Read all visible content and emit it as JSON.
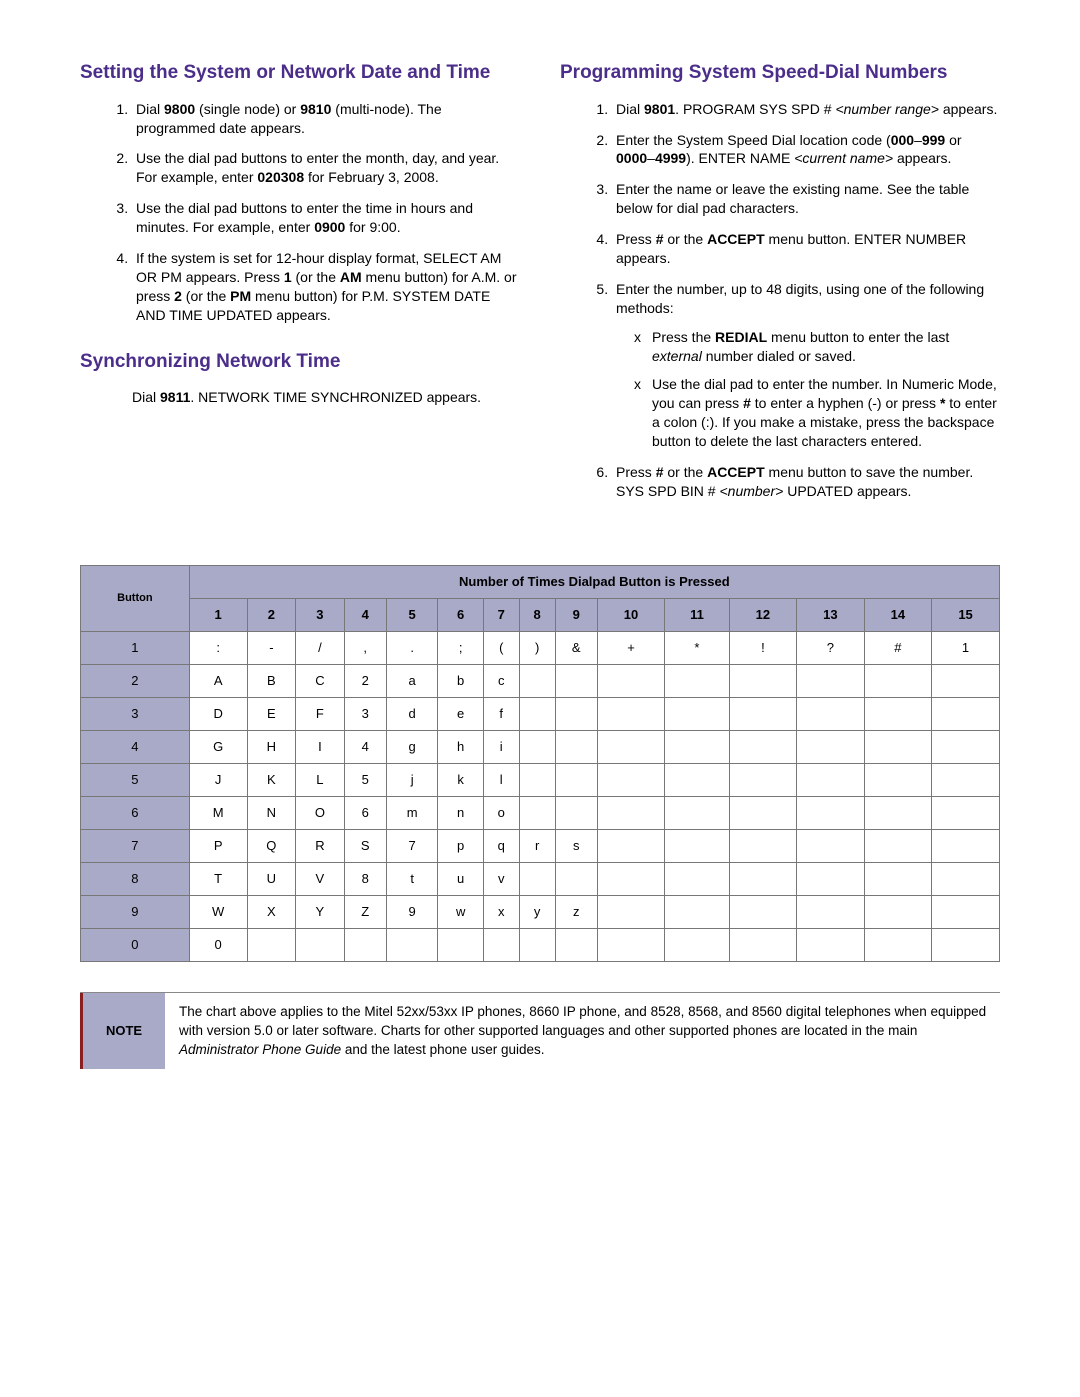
{
  "colors": {
    "heading": "#4b2d8a",
    "table_header_bg": "#a9a9c8",
    "table_border": "#777777",
    "note_accent": "#8a1f1f",
    "text": "#000000",
    "background": "#ffffff"
  },
  "left": {
    "h1": "Setting the System or Network Date and Time",
    "steps": {
      "s1a": "Dial ",
      "s1b": "9800",
      "s1c": " (single node) or ",
      "s1d": "9810",
      "s1e": " (multi-node). The programmed date appears.",
      "s2a": "Use the dial pad buttons to enter the month, day, and year. For example, enter ",
      "s2b": "020308",
      "s2c": " for February 3, 2008.",
      "s3a": "Use the dial pad buttons to enter the time in hours and minutes. For example, enter ",
      "s3b": "0900",
      "s3c": " for 9:00.",
      "s4a": "If the system is set for 12-hour display format, SELECT AM OR PM appears. Press ",
      "s4b": "1",
      "s4c": " (or the ",
      "s4d": "AM",
      "s4e": " menu button) for A.M. or press ",
      "s4f": "2",
      "s4g": " (or the ",
      "s4h": "PM",
      "s4i": " menu button) for P.M. SYSTEM DATE AND TIME UPDATED appears."
    },
    "h2": "Synchronizing Network Time",
    "sync_a": "Dial ",
    "sync_b": "9811",
    "sync_c": ". NETWORK TIME SYNCHRONIZED appears."
  },
  "right": {
    "h1": "Programming System Speed-Dial Numbers",
    "steps": {
      "s1a": "Dial ",
      "s1b": "9801",
      "s1c": ". PROGRAM SYS SPD # ",
      "s1d": "<number range>",
      "s1e": " appears.",
      "s2a": "Enter the System Speed Dial location code (",
      "s2b": "000",
      "s2c": "–",
      "s2d": "999",
      "s2e": " or ",
      "s2f": "0000",
      "s2g": "–",
      "s2h": "4999",
      "s2i": "). ENTER NAME ",
      "s2j": "<current name>",
      "s2k": " appears.",
      "s3": "Enter the name or leave the existing name. See the table below for dial pad characters.",
      "s4a": "Press ",
      "s4b": "#",
      "s4c": " or the ",
      "s4d": "ACCEPT",
      "s4e": " menu button. ENTER NUMBER appears.",
      "s5": "Enter the number, up to 48 digits, using one of the following methods:",
      "s5x1a": "Press the ",
      "s5x1b": "REDIAL",
      "s5x1c": " menu button to enter the last ",
      "s5x1d": "external",
      "s5x1e": " number dialed or saved.",
      "s5x2a": "Use the dial pad to enter the number. In Numeric Mode, you can press ",
      "s5x2b": "#",
      "s5x2c": " to enter a hyphen (-) or press ",
      "s5x2d": "*",
      "s5x2e": " to enter a colon (:). If you make a mistake, press the backspace button to delete the last characters entered.",
      "s6a": "Press ",
      "s6b": "#",
      "s6c": " or the ",
      "s6d": "ACCEPT",
      "s6e": " menu button to save the number. SYS SPD BIN # ",
      "s6f": "<number>",
      "s6g": " UPDATED appears."
    }
  },
  "table": {
    "title": "Number of Times Dialpad Button is Pressed",
    "button_label": "Button",
    "cols": [
      "1",
      "2",
      "3",
      "4",
      "5",
      "6",
      "7",
      "8",
      "9",
      "10",
      "11",
      "12",
      "13",
      "14",
      "15"
    ],
    "rows": [
      {
        "btn": "1",
        "cells": [
          ":",
          "-",
          "/",
          ",",
          ".",
          ";",
          "(",
          ")",
          "&",
          "+",
          "*",
          "!",
          "?",
          "#",
          "1"
        ]
      },
      {
        "btn": "2",
        "cells": [
          "A",
          "B",
          "C",
          "2",
          "a",
          "b",
          "c",
          "",
          "",
          "",
          "",
          "",
          "",
          "",
          ""
        ]
      },
      {
        "btn": "3",
        "cells": [
          "D",
          "E",
          "F",
          "3",
          "d",
          "e",
          "f",
          "",
          "",
          "",
          "",
          "",
          "",
          "",
          ""
        ]
      },
      {
        "btn": "4",
        "cells": [
          "G",
          "H",
          "I",
          "4",
          "g",
          "h",
          "i",
          "",
          "",
          "",
          "",
          "",
          "",
          "",
          ""
        ]
      },
      {
        "btn": "5",
        "cells": [
          "J",
          "K",
          "L",
          "5",
          "j",
          "k",
          "l",
          "",
          "",
          "",
          "",
          "",
          "",
          "",
          ""
        ]
      },
      {
        "btn": "6",
        "cells": [
          "M",
          "N",
          "O",
          "6",
          "m",
          "n",
          "o",
          "",
          "",
          "",
          "",
          "",
          "",
          "",
          ""
        ]
      },
      {
        "btn": "7",
        "cells": [
          "P",
          "Q",
          "R",
          "S",
          "7",
          "p",
          "q",
          "r",
          "s",
          "",
          "",
          "",
          "",
          "",
          ""
        ]
      },
      {
        "btn": "8",
        "cells": [
          "T",
          "U",
          "V",
          "8",
          "t",
          "u",
          "v",
          "",
          "",
          "",
          "",
          "",
          "",
          "",
          ""
        ]
      },
      {
        "btn": "9",
        "cells": [
          "W",
          "X",
          "Y",
          "Z",
          "9",
          "w",
          "x",
          "y",
          "z",
          "",
          "",
          "",
          "",
          "",
          ""
        ]
      },
      {
        "btn": "0",
        "cells": [
          "0",
          "",
          "",
          "",
          "",
          "",
          "",
          "",
          "",
          "",
          "",
          "",
          "",
          "",
          ""
        ]
      }
    ]
  },
  "note": {
    "label": "NOTE",
    "text_a": "The chart above applies to the Mitel 52xx/53xx IP phones, 8660 IP phone, and 8528, 8568, and 8560 digital telephones when equipped with version 5.0 or later software. Charts for other supported languages and other supported phones are located in the main ",
    "text_b": "Administrator Phone Guide",
    "text_c": " and the latest phone user guides."
  }
}
